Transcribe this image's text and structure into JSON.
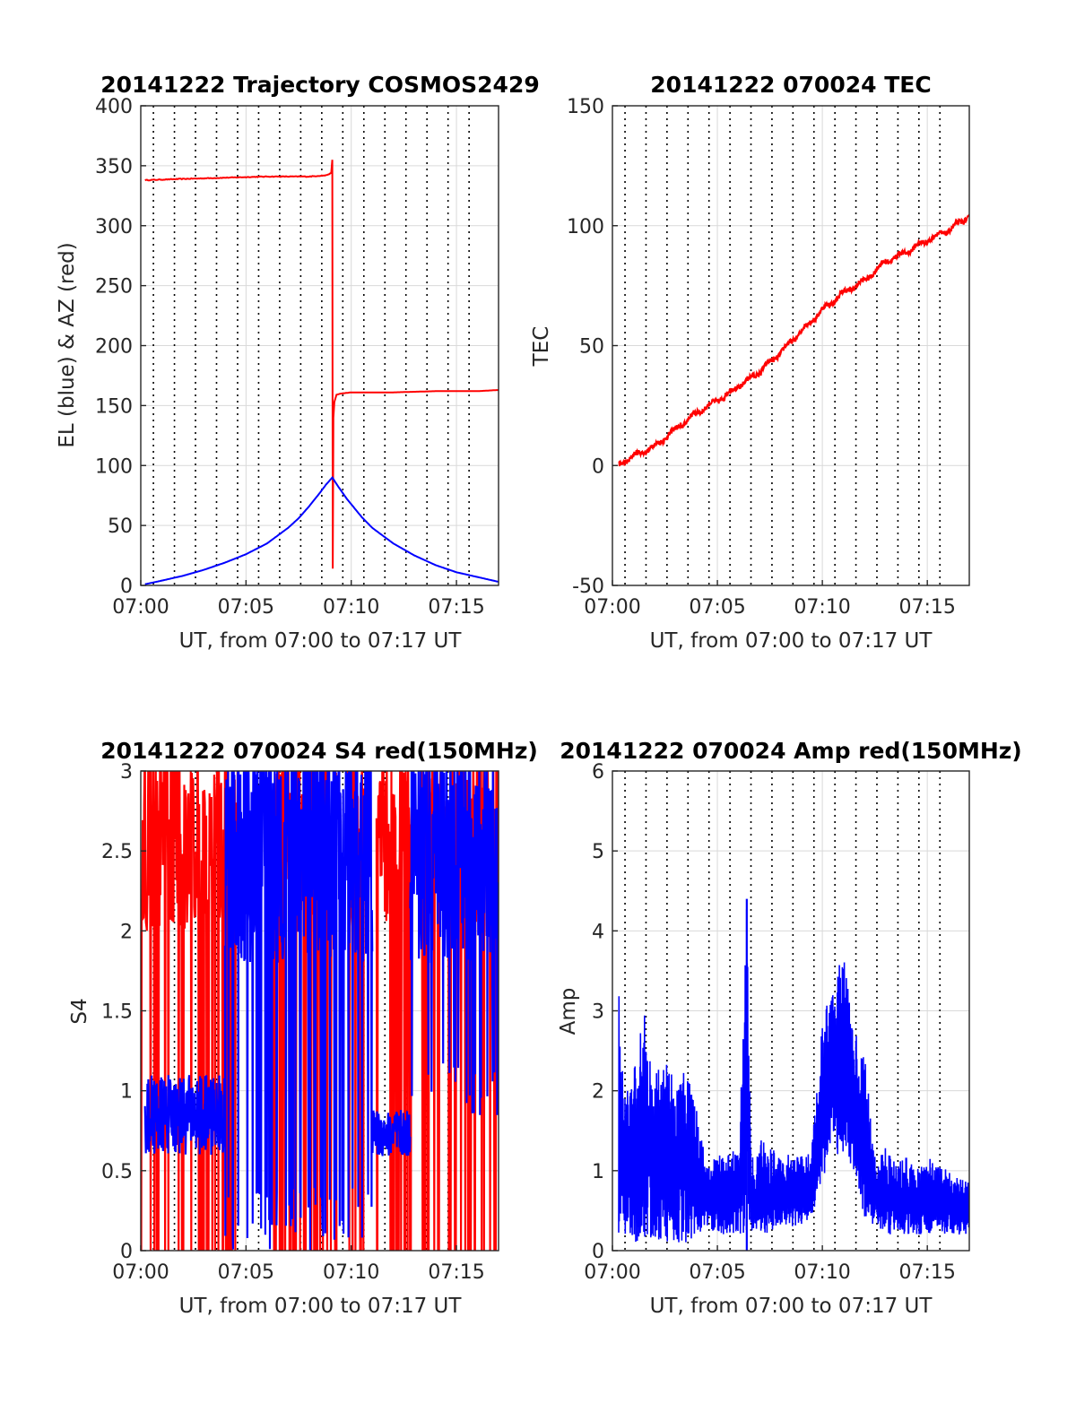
{
  "colors": {
    "az": "#ff0000",
    "el": "#0000ff",
    "tec": "#ff0000",
    "s4_red": "#ff0000",
    "s4_blue": "#0000ff",
    "amp": "#0000ff",
    "grid": "#d9d9d9",
    "axis": "#262626"
  },
  "chart_data": [
    {
      "type": "line",
      "title": "20141222 Trajectory COSMOS2429",
      "xlabel": "UT, from 07:00 to 07:17 UT",
      "ylabel": "EL (blue) & AZ (red)",
      "x_unit": "minutes after 07:00",
      "xlim": [
        0,
        17
      ],
      "ylim": [
        0,
        400
      ],
      "xticks": [
        0,
        5,
        10,
        15
      ],
      "xtick_labels": [
        "07:00",
        "07:05",
        "07:10",
        "07:15"
      ],
      "yticks": [
        0,
        50,
        100,
        150,
        200,
        250,
        300,
        350,
        400
      ],
      "ytick_labels": [
        "0",
        "50",
        "100",
        "150",
        "200",
        "250",
        "300",
        "350",
        "400"
      ],
      "vertical_dotted_lines": [
        0.6,
        1.6,
        2.6,
        3.6,
        4.6,
        5.6,
        6.6,
        7.6,
        8.6,
        9.6,
        10.6,
        11.6,
        12.6,
        13.6,
        14.6,
        15.6
      ],
      "grid": true,
      "series": [
        {
          "name": "AZ (red)",
          "color": "#ff0000",
          "x": [
            0.2,
            2.0,
            4.0,
            6.0,
            8.0,
            8.8,
            9.05,
            9.1,
            9.12,
            9.15,
            9.2,
            9.3,
            9.5,
            10.0,
            12.0,
            14.0,
            16.0,
            17.0
          ],
          "y": [
            338,
            339,
            340,
            341,
            341,
            342,
            344,
            355,
            14,
            140,
            153,
            159,
            160,
            161,
            161,
            162,
            162,
            163
          ]
        },
        {
          "name": "EL (blue)",
          "color": "#0000ff",
          "x": [
            0.2,
            1,
            2,
            3,
            4,
            5,
            6,
            7,
            7.5,
            8,
            8.5,
            8.8,
            9.1,
            9.4,
            9.8,
            10.5,
            11,
            12,
            13,
            14,
            15,
            16,
            17
          ],
          "y": [
            1,
            4,
            8,
            13,
            19,
            26,
            35,
            48,
            56,
            66,
            77,
            84,
            90,
            82,
            72,
            57,
            48,
            35,
            25,
            17,
            11,
            7,
            3
          ]
        }
      ]
    },
    {
      "type": "line",
      "title": "20141222 070024 TEC",
      "xlabel": "UT, from 07:00 to 07:17 UT",
      "ylabel": "TEC",
      "x_unit": "minutes after 07:00",
      "xlim": [
        0,
        17
      ],
      "ylim": [
        -50,
        150
      ],
      "xticks": [
        0,
        5,
        10,
        15
      ],
      "xtick_labels": [
        "07:00",
        "07:05",
        "07:10",
        "07:15"
      ],
      "yticks": [
        -50,
        0,
        50,
        100,
        150
      ],
      "ytick_labels": [
        "-50",
        "0",
        "50",
        "100",
        "150"
      ],
      "vertical_dotted_lines": [
        0.6,
        1.6,
        2.6,
        3.6,
        4.6,
        5.6,
        6.6,
        7.6,
        8.6,
        9.6,
        10.6,
        11.6,
        12.6,
        13.6,
        14.6,
        15.6
      ],
      "grid": true,
      "series": [
        {
          "name": "TEC",
          "color": "#ff0000",
          "x": [
            0.3,
            1.0,
            2.0,
            3.0,
            4.0,
            5.0,
            6.0,
            7.0,
            8.0,
            9.0,
            10.0,
            11.0,
            12.0,
            13.0,
            14.0,
            15.0,
            16.0,
            17.0
          ],
          "y": [
            0,
            4,
            8,
            15,
            22,
            27,
            33,
            39,
            47,
            56,
            65,
            72,
            77,
            85,
            89,
            94,
            98,
            104
          ]
        }
      ]
    },
    {
      "type": "line",
      "title": "20141222 070024 S4 red(150MHz)",
      "xlabel": "UT, from 07:00 to 07:17 UT",
      "ylabel": "S4",
      "x_unit": "minutes after 07:00",
      "xlim": [
        0,
        17
      ],
      "ylim": [
        0,
        3
      ],
      "xticks": [
        0,
        5,
        10,
        15
      ],
      "xtick_labels": [
        "07:00",
        "07:05",
        "07:10",
        "07:15"
      ],
      "yticks": [
        0,
        0.5,
        1,
        1.5,
        2,
        2.5,
        3
      ],
      "ytick_labels": [
        "0",
        "0.5",
        "1",
        "1.5",
        "2",
        "2.5",
        "3"
      ],
      "vertical_dotted_lines": [
        0.6,
        1.6,
        2.6,
        3.6,
        4.6,
        5.6,
        6.6,
        7.6,
        8.6,
        9.6,
        10.6,
        11.6,
        12.6,
        13.6,
        14.6,
        15.6
      ],
      "grid": true,
      "series": [
        {
          "name": "S4 red",
          "color": "#ff0000",
          "spans": [
            [
              0.0,
              4.6
            ],
            [
              6.2,
              9.3
            ],
            [
              9.8,
              10.6
            ],
            [
              11.2,
              12.9
            ],
            [
              13.3,
              17.0
            ]
          ],
          "amplitude_range": [
            0,
            3
          ],
          "approx_mean": 2.4
        },
        {
          "name": "S4 blue",
          "color": "#0000ff",
          "x_segments": [
            [
              0.2,
              4.0
            ],
            [
              4.0,
              11.0
            ],
            [
              11.0,
              12.8
            ],
            [
              12.8,
              17.0
            ]
          ],
          "low_level_segments": [
            {
              "x": [
                0.2,
                4.0
              ],
              "y_mean": 0.83,
              "y_range": [
                0.6,
                1.1
              ]
            },
            {
              "x": [
                11.0,
                12.8
              ],
              "y_mean": 0.72,
              "y_range": [
                0.58,
                0.88
              ]
            }
          ],
          "high_level_segments": [
            {
              "x": [
                4.0,
                11.0
              ],
              "y_range": [
                0,
                3
              ]
            },
            {
              "x": [
                12.8,
                17.0
              ],
              "y_range": [
                0.8,
                3
              ]
            }
          ]
        }
      ]
    },
    {
      "type": "line",
      "title": "20141222 070024 Amp red(150MHz)",
      "xlabel": "UT, from 07:00 to 07:17 UT",
      "ylabel": "Amp",
      "x_unit": "minutes after 07:00",
      "xlim": [
        0,
        17
      ],
      "ylim": [
        0,
        6
      ],
      "xticks": [
        0,
        5,
        10,
        15
      ],
      "xtick_labels": [
        "07:00",
        "07:05",
        "07:10",
        "07:15"
      ],
      "yticks": [
        0,
        1,
        2,
        3,
        4,
        5,
        6
      ],
      "ytick_labels": [
        "0",
        "1",
        "2",
        "3",
        "4",
        "5",
        "6"
      ],
      "vertical_dotted_lines": [
        0.6,
        1.6,
        2.6,
        3.6,
        4.6,
        5.6,
        6.6,
        7.6,
        8.6,
        9.6,
        10.6,
        11.6,
        12.6,
        13.6,
        14.6,
        15.6
      ],
      "grid": true,
      "series": [
        {
          "name": "Amp",
          "color": "#0000ff",
          "envelope_x": [
            0.3,
            0.5,
            1.0,
            1.5,
            2.0,
            2.5,
            3.0,
            3.5,
            4.0,
            4.5,
            5.0,
            5.5,
            6.0,
            6.4,
            6.6,
            6.8,
            7.0,
            7.5,
            8.0,
            8.5,
            9.0,
            9.5,
            10.0,
            10.5,
            11.0,
            11.5,
            12.0,
            12.5,
            13.0,
            13.5,
            14.0,
            14.5,
            15.0,
            15.5,
            16.0,
            16.5,
            17.0
          ],
          "envelope_max": [
            3.6,
            2.1,
            2.2,
            3.1,
            2.2,
            2.4,
            2.2,
            2.3,
            1.8,
            1.1,
            1.2,
            1.2,
            1.3,
            4.4,
            1.3,
            1.0,
            1.4,
            1.3,
            1.2,
            1.2,
            1.2,
            1.3,
            2.9,
            3.4,
            3.7,
            2.8,
            2.5,
            1.2,
            1.3,
            1.1,
            1.2,
            1.0,
            1.2,
            1.1,
            1.0,
            0.9,
            0.9
          ],
          "envelope_min": [
            0,
            0.1,
            0.1,
            0.1,
            0.1,
            0.1,
            0.1,
            0.1,
            0.2,
            0.3,
            0.2,
            0.2,
            0.2,
            0.2,
            0.2,
            0.3,
            0.2,
            0.2,
            0.3,
            0.3,
            0.3,
            0.4,
            0.9,
            1.2,
            1.2,
            0.9,
            0.4,
            0.3,
            0.2,
            0.2,
            0.2,
            0.2,
            0.2,
            0.2,
            0.2,
            0.2,
            0.2
          ]
        }
      ]
    }
  ]
}
